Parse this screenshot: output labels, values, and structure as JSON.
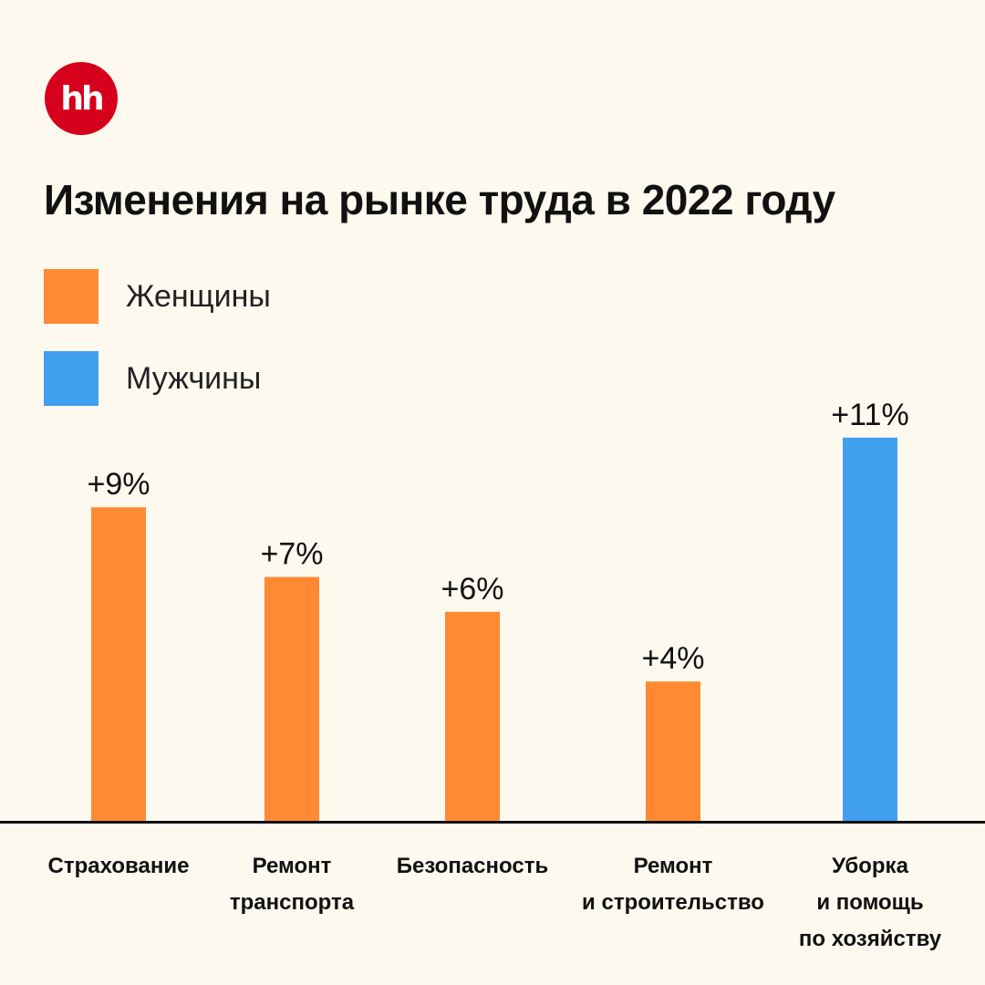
{
  "logo": {
    "text": "hh",
    "color": "#d6001c"
  },
  "colors": {
    "women": "#ff8a33",
    "men": "#419ff0",
    "axis": "#111111",
    "background": "#fdf9ef"
  },
  "chart_data": {
    "type": "bar",
    "title": "Изменения на рынке труда в 2022 году",
    "xlabel": "",
    "ylabel": "",
    "ylim": [
      0,
      11
    ],
    "grid": false,
    "legend_placement": "top-left",
    "legend": [
      {
        "label": "Женщины",
        "color": "#ff8a33"
      },
      {
        "label": "Мужчины",
        "color": "#419ff0"
      }
    ],
    "categories": [
      "Страхование",
      "Ремонт транспорта",
      "Безопасность",
      "Ремонт и строительство",
      "Уборка и помощь по хозяйству"
    ],
    "category_label_lines": [
      [
        "Страхование"
      ],
      [
        "Ремонт",
        "транспорта"
      ],
      [
        "Безопасность"
      ],
      [
        "Ремонт",
        "и строительство"
      ],
      [
        "Уборка",
        "и помощь",
        "по хозяйству"
      ]
    ],
    "series": [
      {
        "name": "Женщины",
        "color": "#ff8a33",
        "values": [
          9,
          7,
          6,
          4,
          null
        ]
      },
      {
        "name": "Мужчины",
        "color": "#419ff0",
        "values": [
          null,
          null,
          null,
          null,
          11
        ]
      }
    ],
    "data_labels": [
      "+9%",
      "+7%",
      "+6%",
      "+4%",
      "+11%"
    ]
  }
}
